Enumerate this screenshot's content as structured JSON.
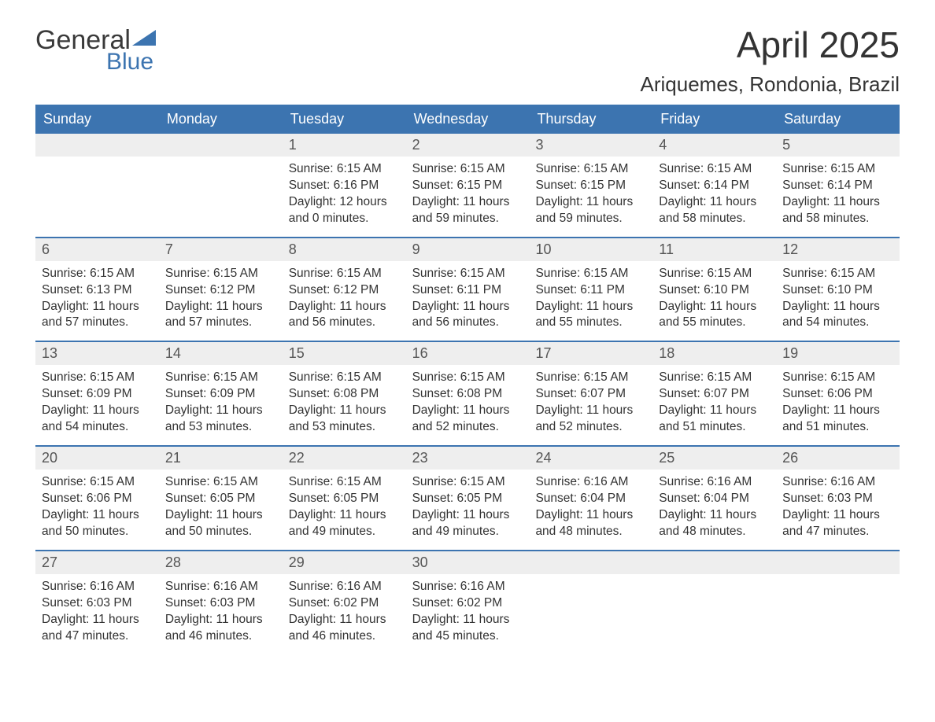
{
  "logo": {
    "word1": "General",
    "word2": "Blue"
  },
  "title": "April 2025",
  "subtitle": "Ariquemes, Rondonia, Brazil",
  "colors": {
    "header_bg": "#3c74b0",
    "header_text": "#ffffff",
    "daynum_bg": "#eeeeee",
    "border": "#3c74b0",
    "text": "#333333",
    "logo_gray": "#3a3a3a",
    "logo_blue": "#3c74b0"
  },
  "day_names": [
    "Sunday",
    "Monday",
    "Tuesday",
    "Wednesday",
    "Thursday",
    "Friday",
    "Saturday"
  ],
  "weeks": [
    [
      {
        "empty": true
      },
      {
        "empty": true
      },
      {
        "num": "1",
        "sunrise": "Sunrise: 6:15 AM",
        "sunset": "Sunset: 6:16 PM",
        "daylight1": "Daylight: 12 hours",
        "daylight2": "and 0 minutes."
      },
      {
        "num": "2",
        "sunrise": "Sunrise: 6:15 AM",
        "sunset": "Sunset: 6:15 PM",
        "daylight1": "Daylight: 11 hours",
        "daylight2": "and 59 minutes."
      },
      {
        "num": "3",
        "sunrise": "Sunrise: 6:15 AM",
        "sunset": "Sunset: 6:15 PM",
        "daylight1": "Daylight: 11 hours",
        "daylight2": "and 59 minutes."
      },
      {
        "num": "4",
        "sunrise": "Sunrise: 6:15 AM",
        "sunset": "Sunset: 6:14 PM",
        "daylight1": "Daylight: 11 hours",
        "daylight2": "and 58 minutes."
      },
      {
        "num": "5",
        "sunrise": "Sunrise: 6:15 AM",
        "sunset": "Sunset: 6:14 PM",
        "daylight1": "Daylight: 11 hours",
        "daylight2": "and 58 minutes."
      }
    ],
    [
      {
        "num": "6",
        "sunrise": "Sunrise: 6:15 AM",
        "sunset": "Sunset: 6:13 PM",
        "daylight1": "Daylight: 11 hours",
        "daylight2": "and 57 minutes."
      },
      {
        "num": "7",
        "sunrise": "Sunrise: 6:15 AM",
        "sunset": "Sunset: 6:12 PM",
        "daylight1": "Daylight: 11 hours",
        "daylight2": "and 57 minutes."
      },
      {
        "num": "8",
        "sunrise": "Sunrise: 6:15 AM",
        "sunset": "Sunset: 6:12 PM",
        "daylight1": "Daylight: 11 hours",
        "daylight2": "and 56 minutes."
      },
      {
        "num": "9",
        "sunrise": "Sunrise: 6:15 AM",
        "sunset": "Sunset: 6:11 PM",
        "daylight1": "Daylight: 11 hours",
        "daylight2": "and 56 minutes."
      },
      {
        "num": "10",
        "sunrise": "Sunrise: 6:15 AM",
        "sunset": "Sunset: 6:11 PM",
        "daylight1": "Daylight: 11 hours",
        "daylight2": "and 55 minutes."
      },
      {
        "num": "11",
        "sunrise": "Sunrise: 6:15 AM",
        "sunset": "Sunset: 6:10 PM",
        "daylight1": "Daylight: 11 hours",
        "daylight2": "and 55 minutes."
      },
      {
        "num": "12",
        "sunrise": "Sunrise: 6:15 AM",
        "sunset": "Sunset: 6:10 PM",
        "daylight1": "Daylight: 11 hours",
        "daylight2": "and 54 minutes."
      }
    ],
    [
      {
        "num": "13",
        "sunrise": "Sunrise: 6:15 AM",
        "sunset": "Sunset: 6:09 PM",
        "daylight1": "Daylight: 11 hours",
        "daylight2": "and 54 minutes."
      },
      {
        "num": "14",
        "sunrise": "Sunrise: 6:15 AM",
        "sunset": "Sunset: 6:09 PM",
        "daylight1": "Daylight: 11 hours",
        "daylight2": "and 53 minutes."
      },
      {
        "num": "15",
        "sunrise": "Sunrise: 6:15 AM",
        "sunset": "Sunset: 6:08 PM",
        "daylight1": "Daylight: 11 hours",
        "daylight2": "and 53 minutes."
      },
      {
        "num": "16",
        "sunrise": "Sunrise: 6:15 AM",
        "sunset": "Sunset: 6:08 PM",
        "daylight1": "Daylight: 11 hours",
        "daylight2": "and 52 minutes."
      },
      {
        "num": "17",
        "sunrise": "Sunrise: 6:15 AM",
        "sunset": "Sunset: 6:07 PM",
        "daylight1": "Daylight: 11 hours",
        "daylight2": "and 52 minutes."
      },
      {
        "num": "18",
        "sunrise": "Sunrise: 6:15 AM",
        "sunset": "Sunset: 6:07 PM",
        "daylight1": "Daylight: 11 hours",
        "daylight2": "and 51 minutes."
      },
      {
        "num": "19",
        "sunrise": "Sunrise: 6:15 AM",
        "sunset": "Sunset: 6:06 PM",
        "daylight1": "Daylight: 11 hours",
        "daylight2": "and 51 minutes."
      }
    ],
    [
      {
        "num": "20",
        "sunrise": "Sunrise: 6:15 AM",
        "sunset": "Sunset: 6:06 PM",
        "daylight1": "Daylight: 11 hours",
        "daylight2": "and 50 minutes."
      },
      {
        "num": "21",
        "sunrise": "Sunrise: 6:15 AM",
        "sunset": "Sunset: 6:05 PM",
        "daylight1": "Daylight: 11 hours",
        "daylight2": "and 50 minutes."
      },
      {
        "num": "22",
        "sunrise": "Sunrise: 6:15 AM",
        "sunset": "Sunset: 6:05 PM",
        "daylight1": "Daylight: 11 hours",
        "daylight2": "and 49 minutes."
      },
      {
        "num": "23",
        "sunrise": "Sunrise: 6:15 AM",
        "sunset": "Sunset: 6:05 PM",
        "daylight1": "Daylight: 11 hours",
        "daylight2": "and 49 minutes."
      },
      {
        "num": "24",
        "sunrise": "Sunrise: 6:16 AM",
        "sunset": "Sunset: 6:04 PM",
        "daylight1": "Daylight: 11 hours",
        "daylight2": "and 48 minutes."
      },
      {
        "num": "25",
        "sunrise": "Sunrise: 6:16 AM",
        "sunset": "Sunset: 6:04 PM",
        "daylight1": "Daylight: 11 hours",
        "daylight2": "and 48 minutes."
      },
      {
        "num": "26",
        "sunrise": "Sunrise: 6:16 AM",
        "sunset": "Sunset: 6:03 PM",
        "daylight1": "Daylight: 11 hours",
        "daylight2": "and 47 minutes."
      }
    ],
    [
      {
        "num": "27",
        "sunrise": "Sunrise: 6:16 AM",
        "sunset": "Sunset: 6:03 PM",
        "daylight1": "Daylight: 11 hours",
        "daylight2": "and 47 minutes."
      },
      {
        "num": "28",
        "sunrise": "Sunrise: 6:16 AM",
        "sunset": "Sunset: 6:03 PM",
        "daylight1": "Daylight: 11 hours",
        "daylight2": "and 46 minutes."
      },
      {
        "num": "29",
        "sunrise": "Sunrise: 6:16 AM",
        "sunset": "Sunset: 6:02 PM",
        "daylight1": "Daylight: 11 hours",
        "daylight2": "and 46 minutes."
      },
      {
        "num": "30",
        "sunrise": "Sunrise: 6:16 AM",
        "sunset": "Sunset: 6:02 PM",
        "daylight1": "Daylight: 11 hours",
        "daylight2": "and 45 minutes."
      },
      {
        "empty": true
      },
      {
        "empty": true
      },
      {
        "empty": true
      }
    ]
  ]
}
